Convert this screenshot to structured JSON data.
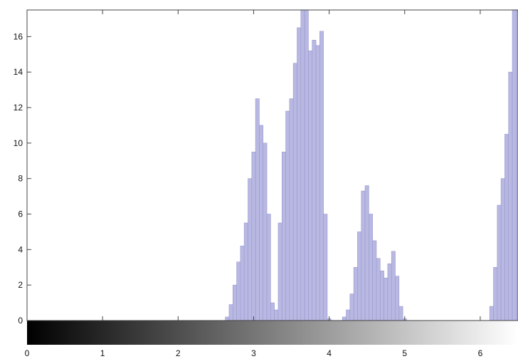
{
  "chart_data": {
    "type": "bar",
    "title": "",
    "xlabel": "",
    "ylabel": "",
    "xlim": [
      0,
      6.5
    ],
    "ylim": [
      0,
      17.5
    ],
    "x_ticks": [
      "0",
      "1",
      "2",
      "3",
      "4",
      "5",
      "6"
    ],
    "y_ticks": [
      "0",
      "2",
      "4",
      "6",
      "8",
      "10",
      "12",
      "14",
      "16"
    ],
    "grid": false,
    "colorbar": {
      "type": "grayscale",
      "from": "#000000",
      "to": "#ffffff"
    },
    "colors": {
      "bar_fill": "#b8b8e2",
      "bar_stroke": "#9a9ad0",
      "axes": "#444444"
    },
    "series": [
      {
        "x": [
          2.65,
          2.7,
          2.75,
          2.8,
          2.85,
          2.9,
          2.95,
          3.0,
          3.05,
          3.1,
          3.15,
          3.2,
          3.25,
          3.3,
          3.35,
          3.4,
          3.45,
          3.5,
          3.55,
          3.6,
          3.65,
          3.7,
          3.75,
          3.8,
          3.85,
          3.9,
          3.95,
          4.0,
          4.05,
          4.1,
          4.15,
          4.2,
          4.25,
          4.3,
          4.35,
          4.4,
          4.45,
          4.5,
          4.55,
          4.6,
          4.65,
          4.7,
          4.75,
          4.8,
          4.85,
          4.9,
          4.95,
          5.0,
          5.05,
          5.1,
          5.15,
          5.2,
          5.25,
          5.3,
          5.35,
          5.4,
          5.45,
          5.5,
          5.55,
          5.6,
          5.65,
          5.7,
          5.75,
          5.8,
          5.85,
          5.9,
          5.95,
          6.0,
          6.05,
          6.1,
          6.15,
          6.2,
          6.25,
          6.3,
          6.35,
          6.4,
          6.45
        ],
        "values": [
          0.2,
          0.9,
          2.0,
          3.3,
          4.2,
          5.5,
          8.0,
          9.5,
          12.5,
          11.0,
          10.0,
          6.0,
          1.0,
          0.6,
          5.5,
          9.5,
          11.8,
          12.5,
          14.5,
          16.5,
          17.5,
          17.5,
          15.2,
          15.8,
          15.5,
          16.3,
          6.0,
          0.1,
          0,
          0,
          0,
          0.2,
          0.6,
          1.5,
          3.0,
          5.0,
          7.3,
          7.6,
          6.0,
          4.5,
          3.5,
          2.8,
          2.4,
          3.2,
          3.9,
          2.5,
          0.8,
          0.1,
          0,
          0,
          0,
          0,
          0,
          0,
          0,
          0,
          0,
          0,
          0,
          0,
          0,
          0,
          0,
          0,
          0,
          0,
          0,
          0,
          0,
          0,
          0,
          0,
          0,
          0,
          0,
          0,
          0
        ],
        "tail": {
          "x": [
            6.1,
            6.15,
            6.2,
            6.25,
            6.3,
            6.35,
            6.4,
            6.45,
            6.5
          ],
          "values": [
            0,
            0.8,
            3.0,
            6.5,
            8.0,
            10.5,
            14.0,
            17.5,
            17.5
          ]
        }
      }
    ]
  }
}
